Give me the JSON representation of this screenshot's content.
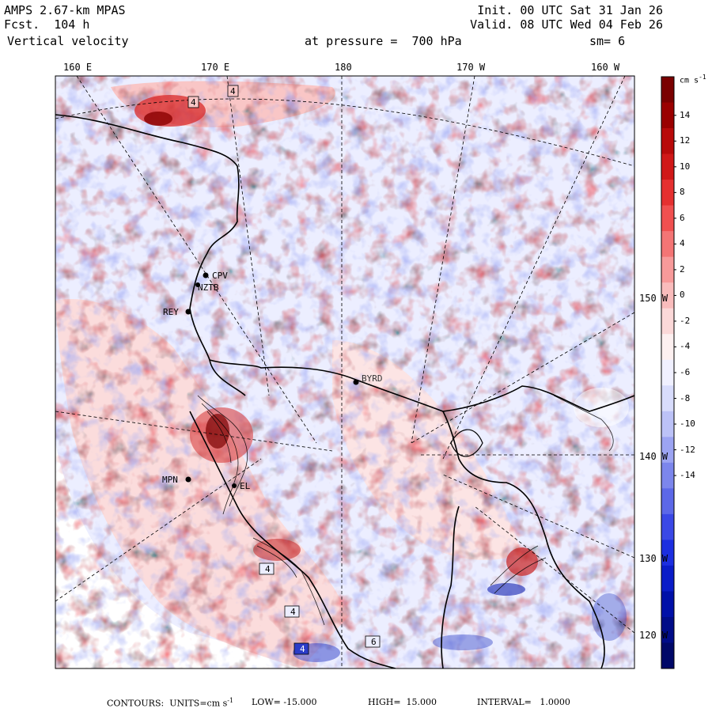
{
  "header": {
    "model": "AMPS 2.67-km MPAS",
    "forecast": "Fcst.  104 h",
    "field": "Vertical velocity",
    "init": "Init. 00 UTC Sat 31 Jan 26",
    "valid": "Valid. 08 UTC Wed 04 Feb 26",
    "pressure": "at pressure =  700 hPa",
    "smoothing": "sm= 6"
  },
  "lon_labels": [
    "160 E",
    "170 E",
    "180",
    "170 W",
    "160 W"
  ],
  "lat_labels": [
    "150 W",
    "140 W",
    "130 W",
    "120 W"
  ],
  "stations": [
    {
      "id": "CPV"
    },
    {
      "id": "NZTB"
    },
    {
      "id": "REY"
    },
    {
      "id": "BYRD"
    },
    {
      "id": "MPN"
    },
    {
      "id": "EL"
    }
  ],
  "contour_boxes": [
    "4",
    "4",
    "4",
    "4",
    "4",
    "6"
  ],
  "colorbar": {
    "unit": "cm s",
    "unit_exp": "-1",
    "ticks": [
      "14",
      "12",
      "10",
      "8",
      "6",
      "4",
      "2",
      "0",
      "-2",
      "-4",
      "-6",
      "-8",
      "-10",
      "-12",
      "-14"
    ],
    "colors": [
      "#7a0000",
      "#9a0000",
      "#b80a0a",
      "#d01818",
      "#e53030",
      "#f05050",
      "#f47575",
      "#f79a9a",
      "#f9bcbc",
      "#fbd8d8",
      "#fdf0f0",
      "#f0f0ff",
      "#d8dcfc",
      "#bcc2f7",
      "#9ca4f2",
      "#7c86ec",
      "#5c68e8",
      "#3a48e6",
      "#1c2ee0",
      "#0a1cc8",
      "#0010a8",
      "#000c88",
      "#000868"
    ]
  },
  "footer": {
    "contours": "CONTOURS:  UNITS=cm s",
    "exp": "-1",
    "low": "LOW= -15.000",
    "high": "HIGH=  15.000",
    "interval": "INTERVAL=   1.0000"
  }
}
